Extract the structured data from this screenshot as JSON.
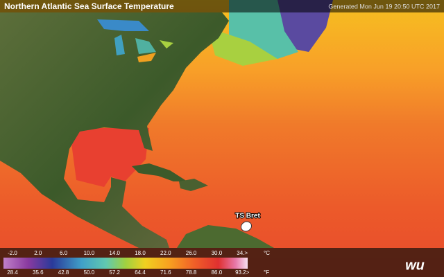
{
  "header": {
    "title": "Northern Atlantic Sea Surface Temperature",
    "generated": "Generated Mon Jun 19 20:50 UTC 2017"
  },
  "map": {
    "storm_label": "TS Bret"
  },
  "legend": {
    "celsius": [
      "-2.0",
      "2.0",
      "6.0",
      "10.0",
      "14.0",
      "18.0",
      "22.0",
      "26.0",
      "30.0",
      "34.>"
    ],
    "celsius_unit": "°C",
    "fahrenheit": [
      "28.4",
      "35.6",
      "42.8",
      "50.0",
      "57.2",
      "64.4",
      "71.6",
      "78.8",
      "86.0",
      "93.2>"
    ],
    "fahrenheit_unit": "°F"
  },
  "logo": "wu"
}
